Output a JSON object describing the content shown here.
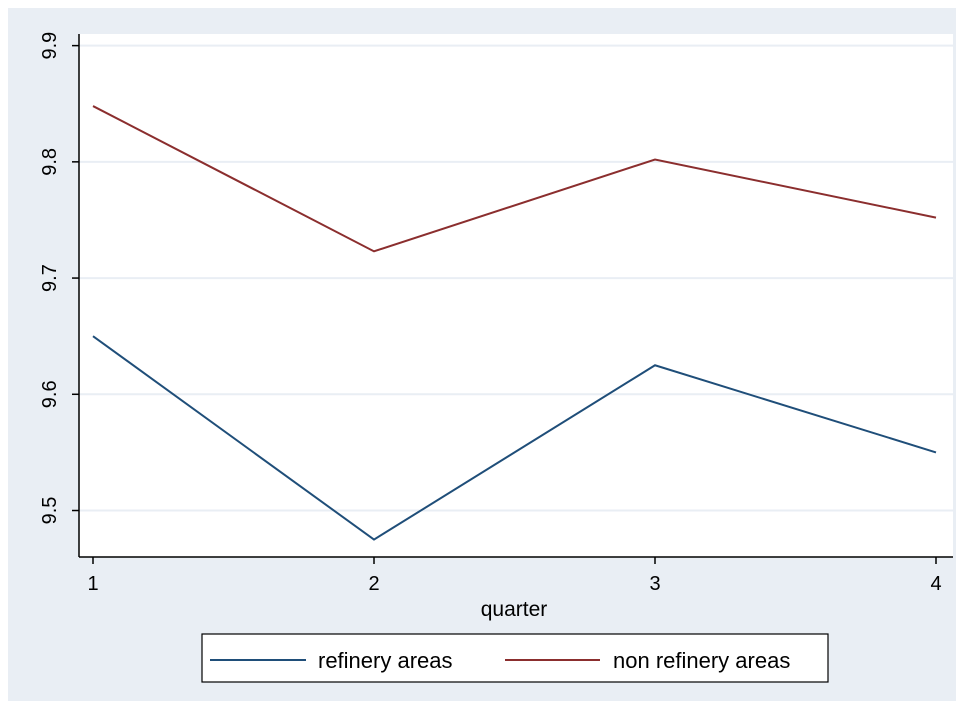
{
  "chart_data": {
    "type": "line",
    "title": "",
    "xlabel": "quarter",
    "ylabel": "",
    "x": [
      1,
      2,
      3,
      4
    ],
    "xticks": [
      "1",
      "2",
      "3",
      "4"
    ],
    "yticks": [
      "9.5",
      "9.6",
      "9.7",
      "9.8",
      "9.9"
    ],
    "ylim": [
      9.46,
      9.91
    ],
    "xlim": [
      1,
      4
    ],
    "grid": true,
    "legend_position": "bottom",
    "series": [
      {
        "name": "refinery areas",
        "values": [
          9.65,
          9.475,
          9.625,
          9.55
        ],
        "color": "#1f4e79"
      },
      {
        "name": "non refinery areas",
        "values": [
          9.848,
          9.723,
          9.802,
          9.752
        ],
        "color": "#8b2e2e"
      }
    ],
    "colors": {
      "background": "#e9eef4",
      "plot_area": "#ffffff",
      "grid": "#e9eef4"
    }
  }
}
